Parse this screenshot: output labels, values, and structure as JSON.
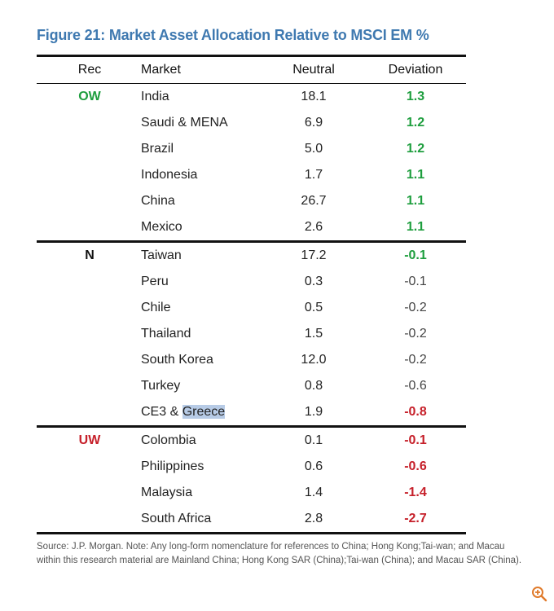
{
  "title": "Figure 21: Market Asset Allocation Relative to MSCI EM %",
  "columns": {
    "rec": "Rec",
    "market": "Market",
    "neutral": "Neutral",
    "deviation": "Deviation"
  },
  "sections": [
    {
      "rec": "OW",
      "rec_color": "#1e9e3e",
      "rows": [
        {
          "market": "India",
          "neutral": "18.1",
          "deviation": "1.3",
          "dev_style": "pos"
        },
        {
          "market": "Saudi & MENA",
          "neutral": "6.9",
          "deviation": "1.2",
          "dev_style": "pos"
        },
        {
          "market": "Brazil",
          "neutral": "5.0",
          "deviation": "1.2",
          "dev_style": "pos"
        },
        {
          "market": "Indonesia",
          "neutral": "1.7",
          "deviation": "1.1",
          "dev_style": "pos"
        },
        {
          "market": "China",
          "neutral": "26.7",
          "deviation": "1.1",
          "dev_style": "pos"
        },
        {
          "market": "Mexico",
          "neutral": "2.6",
          "deviation": "1.1",
          "dev_style": "pos"
        }
      ]
    },
    {
      "rec": "N",
      "rec_color": "#111111",
      "rows": [
        {
          "market": "Taiwan",
          "neutral": "17.2",
          "deviation": "-0.1",
          "dev_style": "green"
        },
        {
          "market": "Peru",
          "neutral": "0.3",
          "deviation": "-0.1",
          "dev_style": "plain"
        },
        {
          "market": "Chile",
          "neutral": "0.5",
          "deviation": "-0.2",
          "dev_style": "plain"
        },
        {
          "market": "Thailand",
          "neutral": "1.5",
          "deviation": "-0.2",
          "dev_style": "plain"
        },
        {
          "market": "South Korea",
          "neutral": "12.0",
          "deviation": "-0.2",
          "dev_style": "plain"
        },
        {
          "market": "Turkey",
          "neutral": "0.8",
          "deviation": "-0.6",
          "dev_style": "plain"
        },
        {
          "market": "CE3 & ",
          "market_highlight": "Greece",
          "neutral": "1.9",
          "deviation": "-0.8",
          "dev_style": "red"
        }
      ]
    },
    {
      "rec": "UW",
      "rec_color": "#c6202a",
      "rows": [
        {
          "market": "Colombia",
          "neutral": "0.1",
          "deviation": "-0.1",
          "dev_style": "red"
        },
        {
          "market": "Philippines",
          "neutral": "0.6",
          "deviation": "-0.6",
          "dev_style": "red"
        },
        {
          "market": "Malaysia",
          "neutral": "1.4",
          "deviation": "-1.4",
          "dev_style": "red"
        },
        {
          "market": "South Africa",
          "neutral": "2.8",
          "deviation": "-2.7",
          "dev_style": "red"
        }
      ]
    }
  ],
  "footnote": "Source: J.P. Morgan. Note: Any long-form nomenclature for references to China; Hong Kong;Tai-wan; and Macau within this research material are Mainland China; Hong Kong SAR (China);Tai-wan (China); and Macau SAR (China).",
  "icons": {
    "zoom": "zoom-in-icon"
  }
}
